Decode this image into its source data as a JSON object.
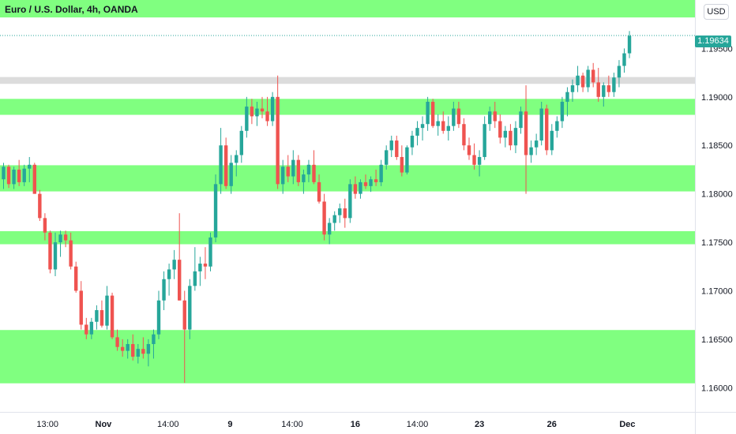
{
  "header": {
    "title": "Euro / U.S. Dollar, 4h, OANDA",
    "currency": "USD"
  },
  "last_price": "1.19634",
  "colors": {
    "up": "#26a69a",
    "down": "#ef5350",
    "zone_green": "#80ff80",
    "zone_gray": "#dcdcdc",
    "grid": "#e0e3eb"
  },
  "chart_data": {
    "type": "candlestick",
    "ylim": [
      1.1575,
      1.2
    ],
    "y_ticks": [
      "1.19500",
      "1.19000",
      "1.18500",
      "1.18000",
      "1.17500",
      "1.17000",
      "1.16500",
      "1.16000"
    ],
    "x_ticks": [
      {
        "label": "13:00",
        "bold": false,
        "i": 8.5
      },
      {
        "label": "Nov",
        "bold": true,
        "i": 19.3
      },
      {
        "label": "14:00",
        "bold": false,
        "i": 31.8
      },
      {
        "label": "9",
        "bold": true,
        "i": 43.8
      },
      {
        "label": "14:00",
        "bold": false,
        "i": 55.8
      },
      {
        "label": "16",
        "bold": true,
        "i": 68.0
      },
      {
        "label": "14:00",
        "bold": false,
        "i": 80.0
      },
      {
        "label": "23",
        "bold": true,
        "i": 92.0
      },
      {
        "label": "26",
        "bold": true,
        "i": 106.0
      },
      {
        "label": "Dec",
        "bold": true,
        "i": 120.6
      }
    ],
    "zones": [
      {
        "from": 1.1982,
        "to": 1.2,
        "color": "green"
      },
      {
        "from": 1.19135,
        "to": 1.19205,
        "color": "gray"
      },
      {
        "from": 1.18815,
        "to": 1.1898,
        "color": "green"
      },
      {
        "from": 1.18025,
        "to": 1.18295,
        "color": "green"
      },
      {
        "from": 1.1748,
        "to": 1.17615,
        "color": "green"
      },
      {
        "from": 1.16045,
        "to": 1.16595,
        "color": "green"
      }
    ],
    "ohlc": [
      [
        1.1815,
        1.1832,
        1.1805,
        1.1828
      ],
      [
        1.1828,
        1.183,
        1.1806,
        1.181
      ],
      [
        1.181,
        1.1828,
        1.1805,
        1.1825
      ],
      [
        1.1825,
        1.1835,
        1.1808,
        1.1812
      ],
      [
        1.1812,
        1.183,
        1.1808,
        1.1826
      ],
      [
        1.1826,
        1.1838,
        1.1812,
        1.183
      ],
      [
        1.183,
        1.1832,
        1.18,
        1.18
      ],
      [
        1.18,
        1.1804,
        1.1772,
        1.1775
      ],
      [
        1.1775,
        1.178,
        1.1752,
        1.176
      ],
      [
        1.176,
        1.1762,
        1.1718,
        1.1722
      ],
      [
        1.1722,
        1.176,
        1.1715,
        1.175
      ],
      [
        1.175,
        1.1762,
        1.1735,
        1.1758
      ],
      [
        1.1758,
        1.1762,
        1.1745,
        1.1752
      ],
      [
        1.1752,
        1.176,
        1.1722,
        1.1725
      ],
      [
        1.1725,
        1.173,
        1.1698,
        1.17
      ],
      [
        1.17,
        1.171,
        1.166,
        1.1665
      ],
      [
        1.1665,
        1.1672,
        1.165,
        1.1655
      ],
      [
        1.1655,
        1.1672,
        1.165,
        1.1668
      ],
      [
        1.1668,
        1.1685,
        1.166,
        1.168
      ],
      [
        1.168,
        1.169,
        1.1662,
        1.1664
      ],
      [
        1.1664,
        1.1705,
        1.166,
        1.1695
      ],
      [
        1.1695,
        1.1698,
        1.165,
        1.1652
      ],
      [
        1.1652,
        1.166,
        1.1638,
        1.1642
      ],
      [
        1.1642,
        1.165,
        1.1632,
        1.1638
      ],
      [
        1.1638,
        1.165,
        1.163,
        1.1645
      ],
      [
        1.1645,
        1.1655,
        1.1628,
        1.1632
      ],
      [
        1.1632,
        1.1645,
        1.1625,
        1.164
      ],
      [
        1.164,
        1.1652,
        1.163,
        1.1635
      ],
      [
        1.1635,
        1.165,
        1.1622,
        1.1645
      ],
      [
        1.1645,
        1.166,
        1.163,
        1.1655
      ],
      [
        1.1655,
        1.17,
        1.165,
        1.169
      ],
      [
        1.169,
        1.172,
        1.168,
        1.1712
      ],
      [
        1.1712,
        1.1728,
        1.1695,
        1.1722
      ],
      [
        1.1722,
        1.1742,
        1.1712,
        1.1732
      ],
      [
        1.1732,
        1.178,
        1.169,
        1.169
      ],
      [
        1.169,
        1.17,
        1.1605,
        1.166
      ],
      [
        1.166,
        1.1712,
        1.165,
        1.1705
      ],
      [
        1.1705,
        1.1745,
        1.17,
        1.172
      ],
      [
        1.172,
        1.1735,
        1.1705,
        1.1728
      ],
      [
        1.1728,
        1.1745,
        1.1712,
        1.1725
      ],
      [
        1.1725,
        1.176,
        1.172,
        1.1755
      ],
      [
        1.1755,
        1.182,
        1.175,
        1.181
      ],
      [
        1.181,
        1.1868,
        1.18,
        1.185
      ],
      [
        1.185,
        1.1858,
        1.1805,
        1.1808
      ],
      [
        1.1808,
        1.184,
        1.18,
        1.1832
      ],
      [
        1.1832,
        1.1845,
        1.1818,
        1.184
      ],
      [
        1.184,
        1.187,
        1.1832,
        1.1865
      ],
      [
        1.1865,
        1.19,
        1.1858,
        1.189
      ],
      [
        1.189,
        1.1898,
        1.1872,
        1.188
      ],
      [
        1.188,
        1.1895,
        1.187,
        1.1888
      ],
      [
        1.1888,
        1.19,
        1.1878,
        1.1885
      ],
      [
        1.1885,
        1.19,
        1.187,
        1.1875
      ],
      [
        1.1875,
        1.1905,
        1.187,
        1.19
      ],
      [
        1.19,
        1.1922,
        1.1805,
        1.181
      ],
      [
        1.181,
        1.1835,
        1.18,
        1.1828
      ],
      [
        1.1828,
        1.184,
        1.1812,
        1.1818
      ],
      [
        1.1818,
        1.1845,
        1.181,
        1.1835
      ],
      [
        1.1835,
        1.184,
        1.1808,
        1.1812
      ],
      [
        1.1812,
        1.1825,
        1.18,
        1.182
      ],
      [
        1.182,
        1.1835,
        1.1812,
        1.183
      ],
      [
        1.183,
        1.1845,
        1.181,
        1.1812
      ],
      [
        1.1812,
        1.182,
        1.179,
        1.1792
      ],
      [
        1.1792,
        1.18,
        1.1752,
        1.1758
      ],
      [
        1.1758,
        1.1775,
        1.1748,
        1.177
      ],
      [
        1.177,
        1.1782,
        1.1762,
        1.1778
      ],
      [
        1.1778,
        1.179,
        1.177,
        1.1785
      ],
      [
        1.1785,
        1.1795,
        1.1765,
        1.1775
      ],
      [
        1.1775,
        1.1815,
        1.177,
        1.181
      ],
      [
        1.181,
        1.1818,
        1.1795,
        1.18
      ],
      [
        1.18,
        1.1815,
        1.1795,
        1.1812
      ],
      [
        1.1812,
        1.182,
        1.1805,
        1.1808
      ],
      [
        1.1808,
        1.1818,
        1.1802,
        1.1815
      ],
      [
        1.1815,
        1.1825,
        1.1808,
        1.1812
      ],
      [
        1.1812,
        1.1835,
        1.1808,
        1.183
      ],
      [
        1.183,
        1.185,
        1.1825,
        1.1845
      ],
      [
        1.1845,
        1.186,
        1.1838,
        1.1855
      ],
      [
        1.1855,
        1.186,
        1.1835,
        1.1838
      ],
      [
        1.1838,
        1.185,
        1.1818,
        1.1822
      ],
      [
        1.1822,
        1.185,
        1.182,
        1.1848
      ],
      [
        1.1848,
        1.1865,
        1.184,
        1.186
      ],
      [
        1.186,
        1.1875,
        1.185,
        1.1868
      ],
      [
        1.1868,
        1.188,
        1.1855,
        1.1872
      ],
      [
        1.1872,
        1.19,
        1.1865,
        1.1895
      ],
      [
        1.1895,
        1.1898,
        1.1868,
        1.187
      ],
      [
        1.187,
        1.1882,
        1.186,
        1.1875
      ],
      [
        1.1875,
        1.1885,
        1.1862,
        1.1865
      ],
      [
        1.1865,
        1.188,
        1.1855,
        1.187
      ],
      [
        1.187,
        1.1895,
        1.1865,
        1.1888
      ],
      [
        1.1888,
        1.1895,
        1.1868,
        1.1872
      ],
      [
        1.1872,
        1.1878,
        1.1845,
        1.185
      ],
      [
        1.185,
        1.1858,
        1.1835,
        1.184
      ],
      [
        1.184,
        1.1852,
        1.1825,
        1.183
      ],
      [
        1.183,
        1.1845,
        1.1818,
        1.1838
      ],
      [
        1.1838,
        1.188,
        1.1835,
        1.1872
      ],
      [
        1.1872,
        1.189,
        1.1865,
        1.1885
      ],
      [
        1.1885,
        1.1895,
        1.1868,
        1.1875
      ],
      [
        1.1875,
        1.1882,
        1.1852,
        1.1858
      ],
      [
        1.1858,
        1.187,
        1.1848,
        1.1865
      ],
      [
        1.1865,
        1.1872,
        1.1845,
        1.185
      ],
      [
        1.185,
        1.1875,
        1.1842,
        1.1868
      ],
      [
        1.1868,
        1.189,
        1.1862,
        1.1885
      ],
      [
        1.1885,
        1.1912,
        1.18,
        1.184
      ],
      [
        1.184,
        1.1855,
        1.1832,
        1.1848
      ],
      [
        1.1848,
        1.1862,
        1.184,
        1.1855
      ],
      [
        1.1855,
        1.1895,
        1.185,
        1.1888
      ],
      [
        1.1888,
        1.1892,
        1.184,
        1.1845
      ],
      [
        1.1845,
        1.1872,
        1.184,
        1.1865
      ],
      [
        1.1865,
        1.188,
        1.1858,
        1.1875
      ],
      [
        1.1875,
        1.19,
        1.1868,
        1.1895
      ],
      [
        1.1895,
        1.191,
        1.188,
        1.1905
      ],
      [
        1.1905,
        1.1918,
        1.1895,
        1.1912
      ],
      [
        1.1912,
        1.1932,
        1.1905,
        1.1922
      ],
      [
        1.1922,
        1.1925,
        1.1905,
        1.191
      ],
      [
        1.191,
        1.1932,
        1.1905,
        1.1928
      ],
      [
        1.1928,
        1.1935,
        1.191,
        1.1915
      ],
      [
        1.1915,
        1.193,
        1.1895,
        1.19
      ],
      [
        1.19,
        1.1915,
        1.189,
        1.1912
      ],
      [
        1.1912,
        1.1922,
        1.19,
        1.1905
      ],
      [
        1.1905,
        1.1925,
        1.19,
        1.192
      ],
      [
        1.192,
        1.1938,
        1.191,
        1.1932
      ],
      [
        1.1932,
        1.195,
        1.1925,
        1.1945
      ],
      [
        1.1945,
        1.1968,
        1.194,
        1.1963
      ]
    ]
  }
}
